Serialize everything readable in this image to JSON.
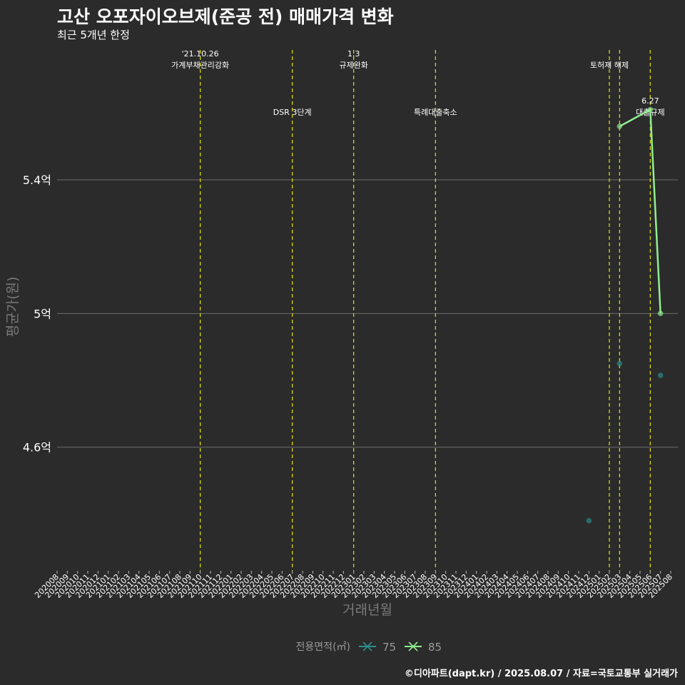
{
  "header": {
    "title": "고산 오포자이오브제(준공 전) 매매가격 변화",
    "subtitle": "최근 5개년 한정"
  },
  "caption": "©디아파트(dapt.kr) / 2025.08.07 / 자료=국토교통부 실거래가",
  "colors": {
    "background": "#2b2b2b",
    "grid": "#6e6e6e",
    "event_line": "#e6e600",
    "series_75": "#2a8f8f",
    "series_85": "#90ee90"
  },
  "chart_data": {
    "type": "line",
    "title": "고산 오포자이오브제(준공 전) 매매가격 변화",
    "subtitle": "최근 5개년 한정",
    "xlabel": "거래년월",
    "ylabel": "평균가(원)",
    "ylim": [
      4.23,
      5.81
    ],
    "y_ticks": [
      {
        "value": 4.6,
        "label": "4.6억"
      },
      {
        "value": 5.0,
        "label": "5억"
      },
      {
        "value": 5.4,
        "label": "5.4억"
      }
    ],
    "x_ticks": [
      "202008",
      "202009",
      "202010",
      "202011",
      "202012",
      "202101",
      "202102",
      "202103",
      "202104",
      "202105",
      "202106",
      "202107",
      "202108",
      "202109",
      "202110",
      "202111",
      "202112",
      "202201",
      "202202",
      "202203",
      "202204",
      "202205",
      "202206",
      "202207",
      "202208",
      "202209",
      "202210",
      "202211",
      "202212",
      "202301",
      "202302",
      "202303",
      "202304",
      "202305",
      "202306",
      "202307",
      "202308",
      "202309",
      "202310",
      "202311",
      "202312",
      "202401",
      "202402",
      "202403",
      "202404",
      "202405",
      "202406",
      "202407",
      "202408",
      "202409",
      "202410",
      "202411",
      "202412",
      "202501",
      "202502",
      "202503",
      "202504",
      "202505",
      "202506",
      "202507",
      "202508"
    ],
    "legend_title": "전용면적(㎡)",
    "legend_position": "bottom",
    "series": [
      {
        "name": "75",
        "color": "#2a8f8f",
        "points": [
          {
            "x": "202412",
            "y": 4.38
          },
          {
            "x": "202503",
            "y": 4.85
          },
          {
            "x": "202507",
            "y": 4.815
          }
        ]
      },
      {
        "name": "85",
        "color": "#90ee90",
        "points": [
          {
            "x": "202503",
            "y": 5.56
          },
          {
            "x": "202506",
            "y": 5.61
          },
          {
            "x": "202507",
            "y": 5.0
          }
        ]
      }
    ],
    "events": [
      {
        "x": "202110",
        "label": "'21.10.26\n가계부채관리강화",
        "row": "top"
      },
      {
        "x": "202207",
        "label": "DSR 3단계",
        "row": "mid"
      },
      {
        "x": "202301",
        "label": "1.3\n규제완화",
        "row": "top"
      },
      {
        "x": "202309",
        "label": "특례대출축소",
        "row": "mid"
      },
      {
        "x": "202502",
        "label": "토허제 해제",
        "row": "top"
      },
      {
        "x": "202503",
        "label": "",
        "row": "top"
      },
      {
        "x": "202506",
        "label": "6.27\n대출규제",
        "row": "mid"
      }
    ]
  }
}
